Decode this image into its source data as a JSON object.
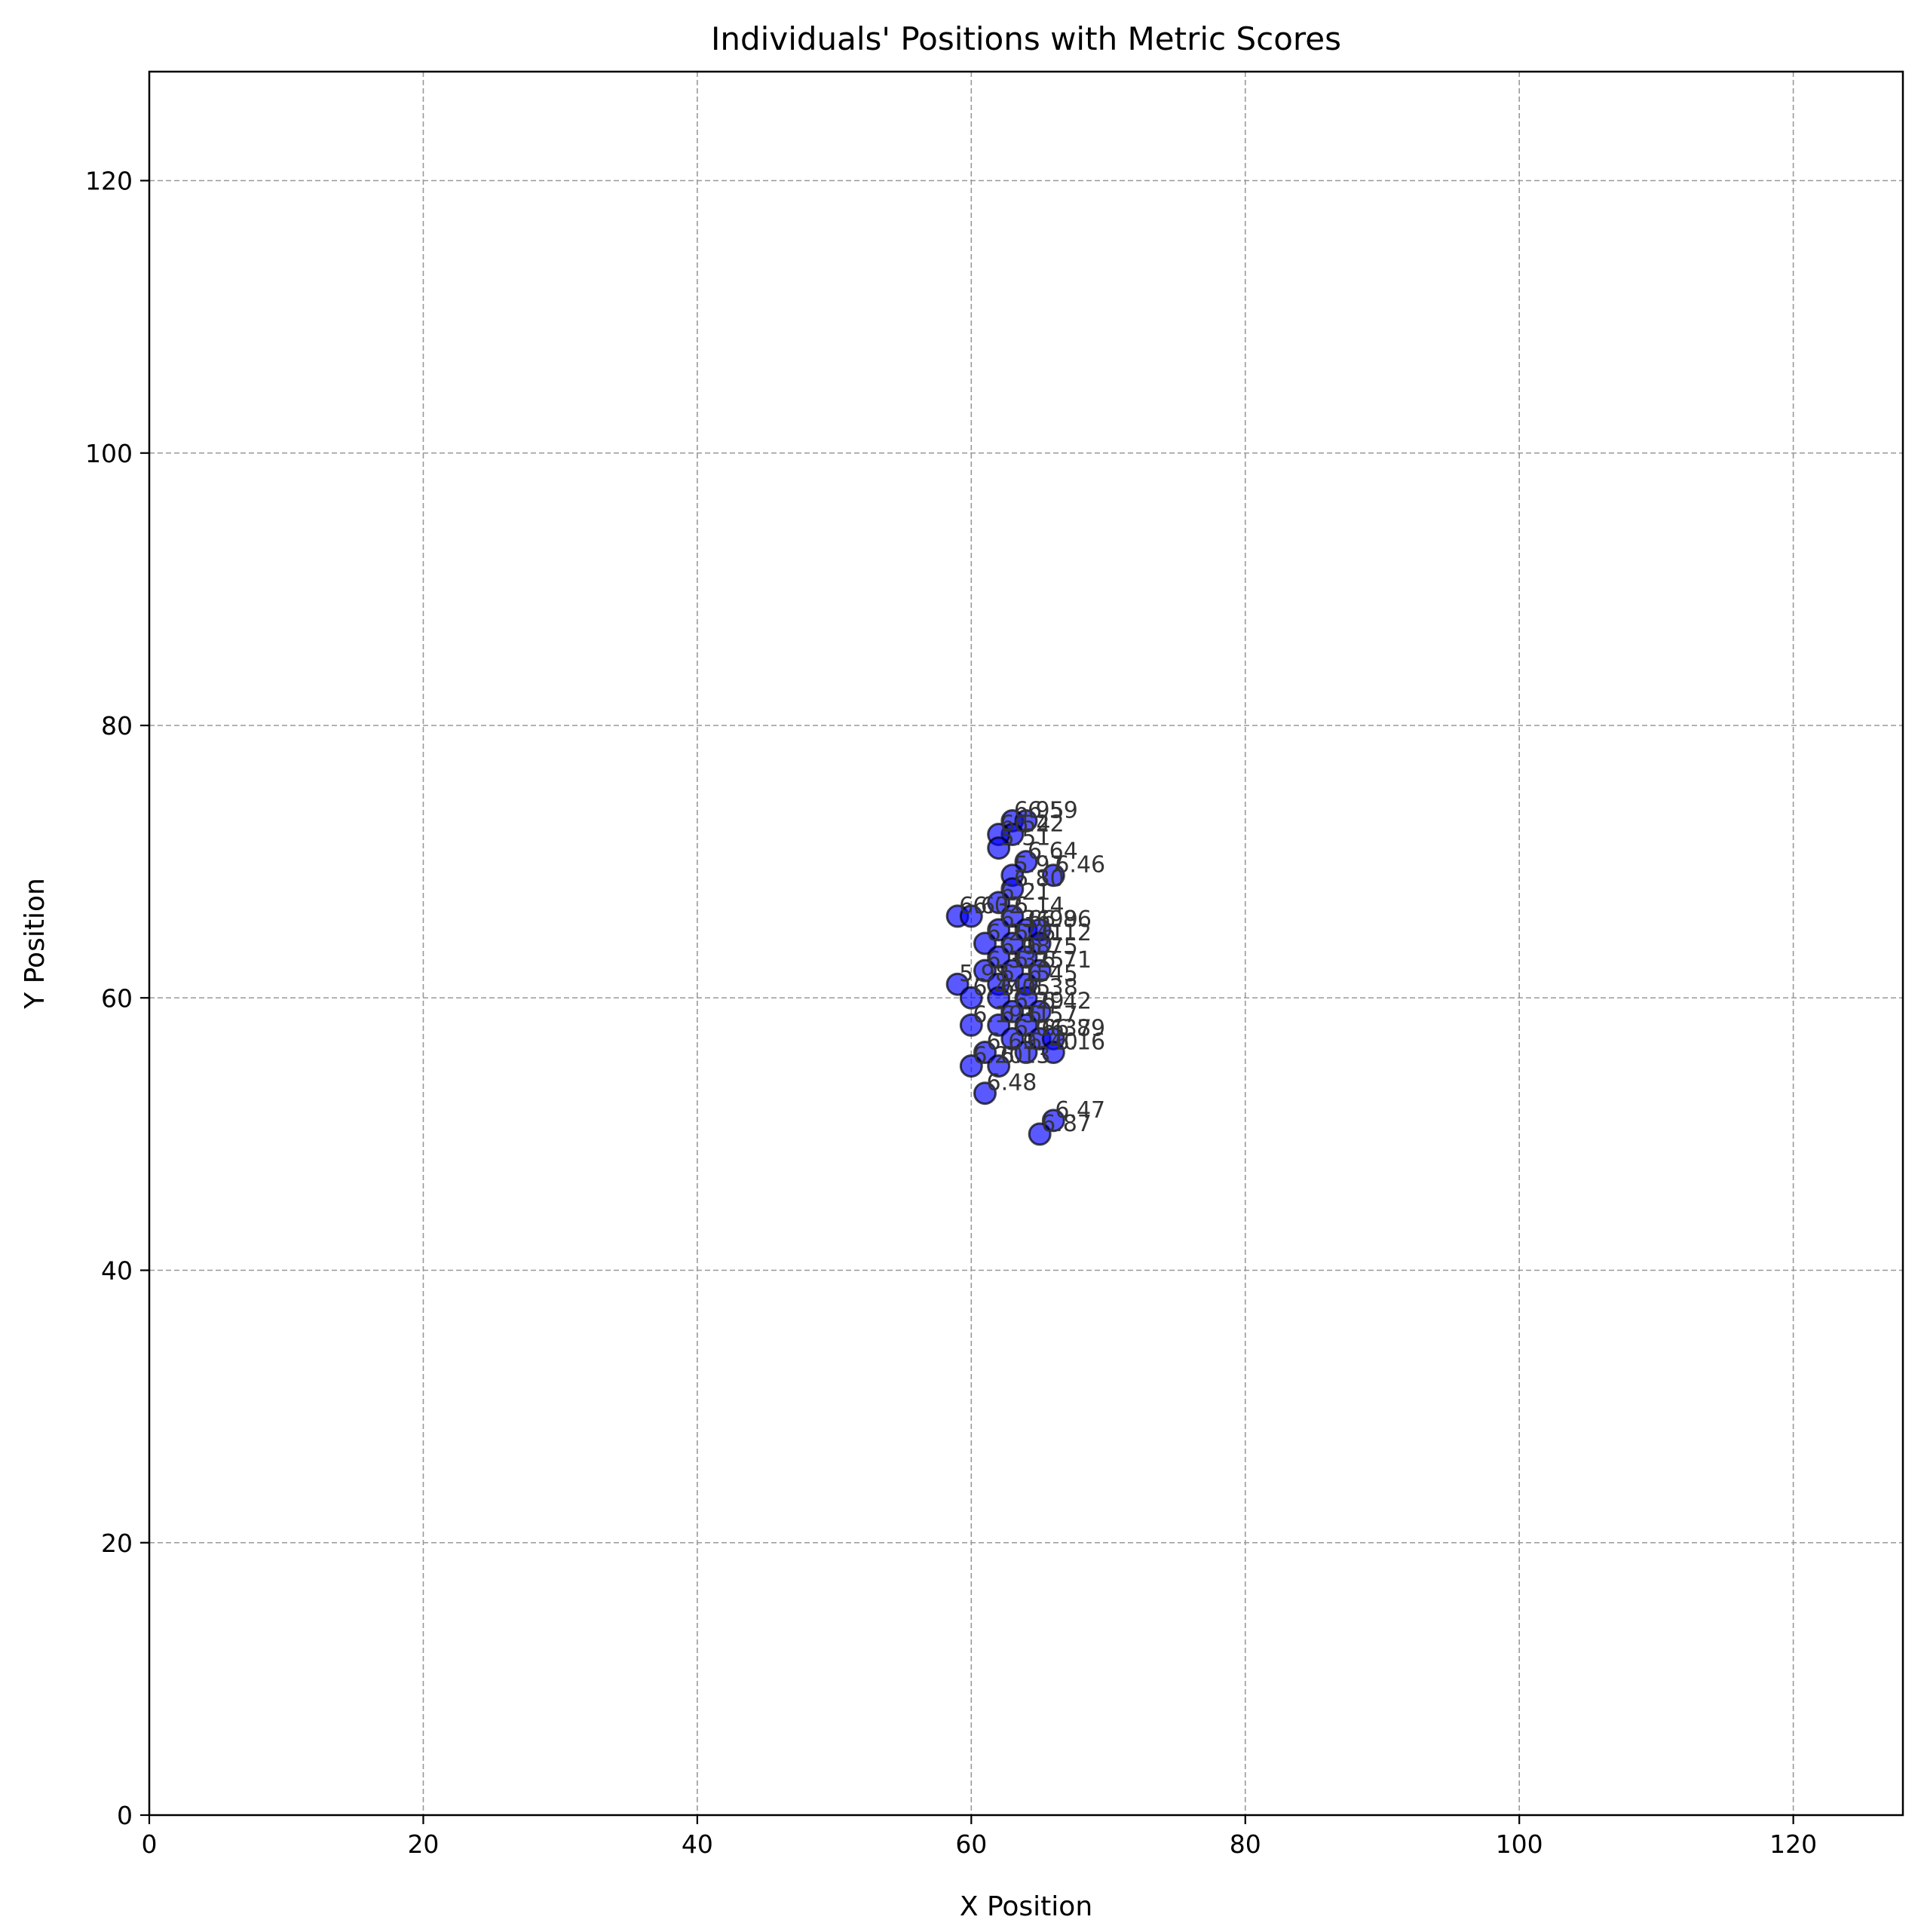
{
  "chart_data": {
    "type": "scatter",
    "title": "Individuals' Positions with Metric Scores",
    "xlabel": "X Position",
    "ylabel": "Y Position",
    "xlim": [
      0,
      128
    ],
    "ylim": [
      0,
      128
    ],
    "xticks": [
      0,
      20,
      40,
      60,
      80,
      100,
      120
    ],
    "yticks": [
      0,
      20,
      40,
      60,
      80,
      100,
      120
    ],
    "grid": true,
    "marker_color": "#0000ff",
    "marker_edge_color": "#000000",
    "annotation_color": "#333333",
    "points": [
      {
        "x": 63,
        "y": 73,
        "label": "6.95"
      },
      {
        "x": 64,
        "y": 73,
        "label": "6.59"
      },
      {
        "x": 63,
        "y": 72,
        "label": "6.22"
      },
      {
        "x": 62,
        "y": 72,
        "label": "6.54"
      },
      {
        "x": 62,
        "y": 71,
        "label": "5.51"
      },
      {
        "x": 64,
        "y": 70,
        "label": "6.64"
      },
      {
        "x": 66,
        "y": 69,
        "label": "6.46"
      },
      {
        "x": 63,
        "y": 69,
        "label": "5.97"
      },
      {
        "x": 63,
        "y": 68,
        "label": "6.80"
      },
      {
        "x": 62,
        "y": 67,
        "label": "6.21"
      },
      {
        "x": 59,
        "y": 66,
        "label": "6.63"
      },
      {
        "x": 60,
        "y": 66,
        "label": "6.02"
      },
      {
        "x": 63,
        "y": 66,
        "label": "6.14"
      },
      {
        "x": 62,
        "y": 65,
        "label": "6.36"
      },
      {
        "x": 64,
        "y": 65,
        "label": "6.99"
      },
      {
        "x": 65,
        "y": 65,
        "label": "6.86"
      },
      {
        "x": 61,
        "y": 64,
        "label": "6.27"
      },
      {
        "x": 63,
        "y": 64,
        "label": "6.41"
      },
      {
        "x": 65,
        "y": 64,
        "label": "6.12"
      },
      {
        "x": 62,
        "y": 63,
        "label": "6.08"
      },
      {
        "x": 64,
        "y": 63,
        "label": "6.75"
      },
      {
        "x": 61,
        "y": 62,
        "label": "6.33"
      },
      {
        "x": 63,
        "y": 62,
        "label": "6.25"
      },
      {
        "x": 65,
        "y": 62,
        "label": "6.71"
      },
      {
        "x": 59,
        "y": 61,
        "label": "5.98"
      },
      {
        "x": 62,
        "y": 61,
        "label": "6.15"
      },
      {
        "x": 64,
        "y": 61,
        "label": "6.45"
      },
      {
        "x": 60,
        "y": 60,
        "label": "6.44"
      },
      {
        "x": 62,
        "y": 60,
        "label": "6.05"
      },
      {
        "x": 64,
        "y": 60,
        "label": "6.38"
      },
      {
        "x": 63,
        "y": 59,
        "label": "6.29"
      },
      {
        "x": 65,
        "y": 59,
        "label": "6.42"
      },
      {
        "x": 60,
        "y": 58,
        "label": "6.19"
      },
      {
        "x": 62,
        "y": 58,
        "label": "6.31"
      },
      {
        "x": 64,
        "y": 58,
        "label": "6.57"
      },
      {
        "x": 63,
        "y": 57,
        "label": "6.06"
      },
      {
        "x": 65,
        "y": 57,
        "label": "6.37"
      },
      {
        "x": 66,
        "y": 57,
        "label": "6.89"
      },
      {
        "x": 61,
        "y": 56,
        "label": "6.60"
      },
      {
        "x": 64,
        "y": 56,
        "label": "6.40"
      },
      {
        "x": 66,
        "y": 56,
        "label": "6.16"
      },
      {
        "x": 60,
        "y": 55,
        "label": "6.20"
      },
      {
        "x": 62,
        "y": 55,
        "label": "6.13"
      },
      {
        "x": 61,
        "y": 53,
        "label": "6.48"
      },
      {
        "x": 66,
        "y": 51,
        "label": "6.47"
      },
      {
        "x": 65,
        "y": 50,
        "label": "6.87"
      }
    ]
  }
}
